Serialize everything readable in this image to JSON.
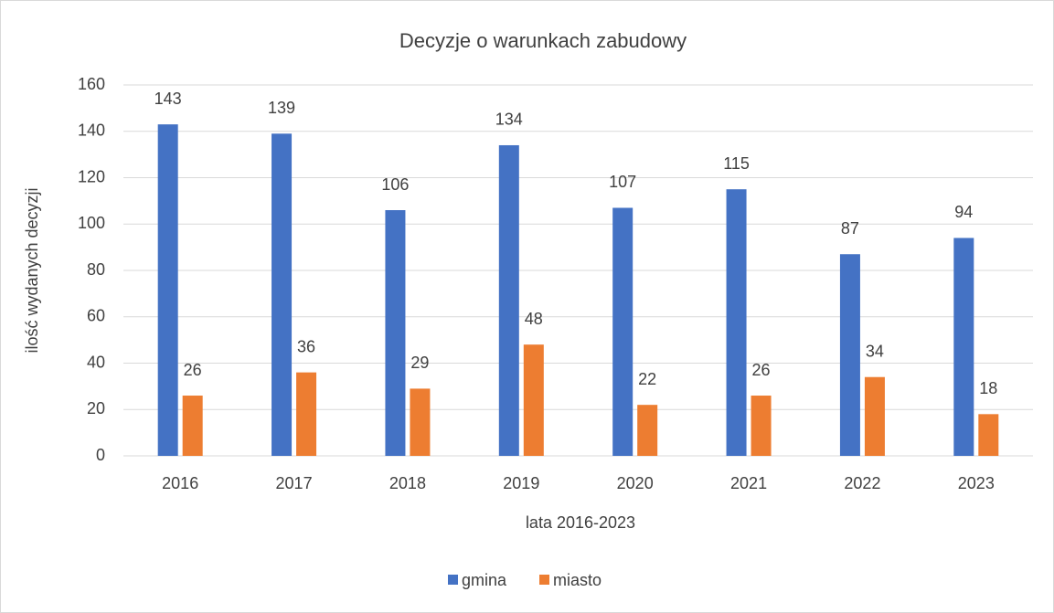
{
  "chart_data": {
    "type": "bar",
    "title": "Decyzje o warunkach zabudowy",
    "xlabel": "lata 2016-2023",
    "ylabel": "ilość wydanych decyzji",
    "categories": [
      "2016",
      "2017",
      "2018",
      "2019",
      "2020",
      "2021",
      "2022",
      "2023"
    ],
    "series": [
      {
        "name": "gmina",
        "color": "#4472c4",
        "values": [
          143,
          139,
          106,
          134,
          107,
          115,
          87,
          94
        ]
      },
      {
        "name": "miasto",
        "color": "#ed7d31",
        "values": [
          26,
          36,
          29,
          48,
          22,
          26,
          34,
          18
        ]
      }
    ],
    "ylim": [
      0,
      160
    ],
    "yticks": [
      0,
      20,
      40,
      60,
      80,
      100,
      120,
      140,
      160
    ],
    "grid": true,
    "legend": "bottom"
  }
}
